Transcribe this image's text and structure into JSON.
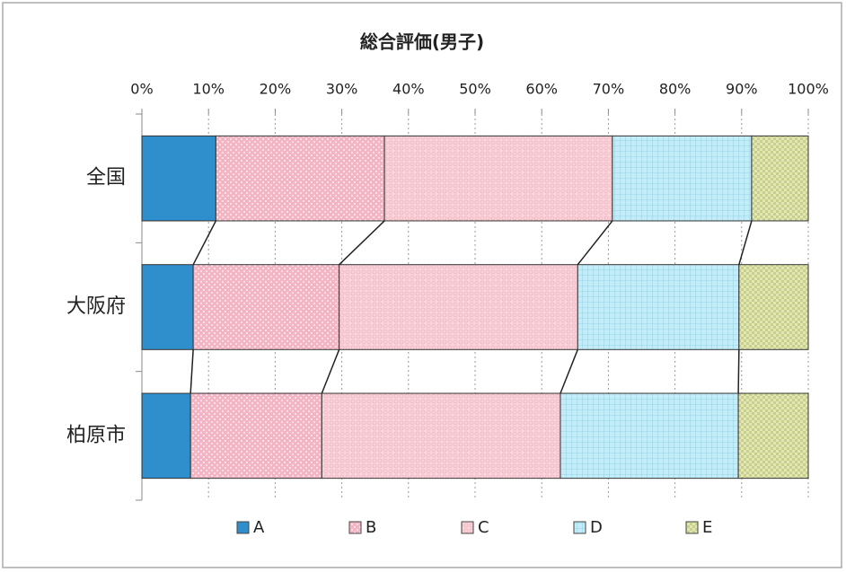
{
  "chart_data": {
    "type": "stacked_barh",
    "title": "総合評価(男子)",
    "categories": [
      "全国",
      "大阪府",
      "柏原市"
    ],
    "series": [
      {
        "name": "A",
        "color": "#2f8fcc",
        "values": [
          11.1,
          7.7,
          7.3
        ]
      },
      {
        "name": "B",
        "color": "#f3b4c4",
        "values": [
          25.3,
          21.9,
          19.7
        ]
      },
      {
        "name": "C",
        "color": "#fad3da",
        "values": [
          34.2,
          35.8,
          35.8
        ]
      },
      {
        "name": "D",
        "color": "#c4ebf6",
        "values": [
          20.9,
          24.2,
          26.7
        ]
      },
      {
        "name": "E",
        "color": "#e2e6b4",
        "values": [
          8.5,
          10.4,
          10.5
        ]
      }
    ],
    "xlim": [
      0,
      100
    ],
    "xticks": [
      {
        "value": 0,
        "label": "0%"
      },
      {
        "value": 10,
        "label": "10%"
      },
      {
        "value": 20,
        "label": "20%"
      },
      {
        "value": 30,
        "label": "30%"
      },
      {
        "value": 40,
        "label": "40%"
      },
      {
        "value": 50,
        "label": "50%"
      },
      {
        "value": 60,
        "label": "60%"
      },
      {
        "value": 70,
        "label": "70%"
      },
      {
        "value": 80,
        "label": "80%"
      },
      {
        "value": 90,
        "label": "90%"
      },
      {
        "value": 100,
        "label": "100%"
      }
    ],
    "grid": true
  }
}
